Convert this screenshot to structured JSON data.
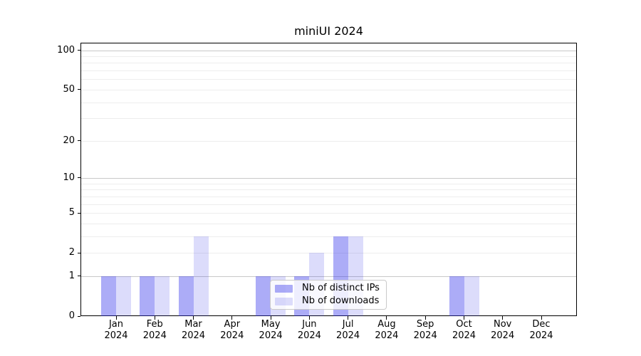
{
  "chart_data": {
    "type": "bar",
    "title": "miniUI 2024",
    "categories": [
      "Jan",
      "Feb",
      "Mar",
      "Apr",
      "May",
      "Jun",
      "Jul",
      "Aug",
      "Sep",
      "Oct",
      "Nov",
      "Dec"
    ],
    "year": "2024",
    "series": [
      {
        "name": "Nb of distinct IPs",
        "color": "rgba(47,47,234,0.40)",
        "values": [
          1,
          1,
          1,
          0,
          1,
          1,
          3,
          0,
          0,
          1,
          0,
          0
        ]
      },
      {
        "name": "Nb of downloads",
        "color": "rgba(47,47,234,0.17)",
        "values": [
          1,
          1,
          3,
          0,
          1,
          2,
          3,
          0,
          0,
          1,
          0,
          0
        ]
      }
    ],
    "yticks": [
      "0",
      "1",
      "2",
      "5",
      "10",
      "20",
      "50",
      "100"
    ],
    "ylim": [
      0,
      114
    ],
    "scale": "log1p",
    "grid": {
      "major": [
        1,
        10,
        100
      ],
      "minor": [
        2,
        3,
        4,
        5,
        6,
        7,
        8,
        9,
        20,
        30,
        40,
        50,
        60,
        70,
        80,
        90
      ],
      "major_color": "#c8c8c8",
      "minor_color": "#ededed"
    },
    "legend": {
      "position": "lower-center-left-overlay"
    }
  }
}
